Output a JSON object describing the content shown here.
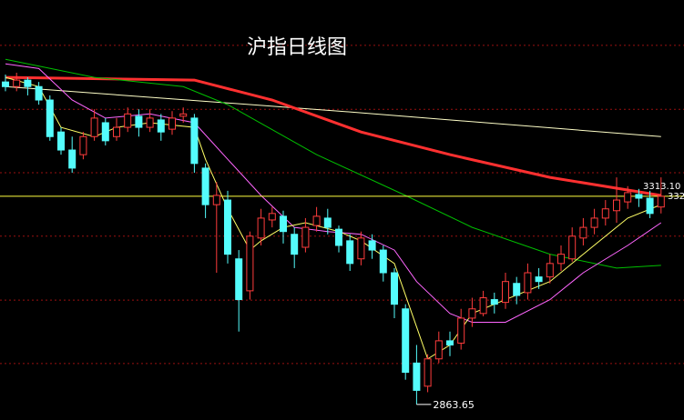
{
  "chart_data": {
    "type": "candlestick",
    "title": "沪指日线图",
    "ylim": [
      2830,
      3737
    ],
    "grid_levels": [
      3639,
      3501,
      3364,
      3227,
      3089,
      2952
    ],
    "up_color": "#ff3c3c",
    "down_color": "#54fcfc",
    "grid_color": "#9a1010",
    "candles": [
      [
        3560,
        3576,
        3540,
        3550
      ],
      [
        3550,
        3580,
        3540,
        3564
      ],
      [
        3564,
        3570,
        3531,
        3550
      ],
      [
        3550,
        3560,
        3511,
        3521
      ],
      [
        3521,
        3531,
        3433,
        3442
      ],
      [
        3452,
        3462,
        3403,
        3413
      ],
      [
        3413,
        3442,
        3364,
        3374
      ],
      [
        3403,
        3452,
        3393,
        3442
      ],
      [
        3442,
        3501,
        3433,
        3482
      ],
      [
        3472,
        3482,
        3423,
        3433
      ],
      [
        3442,
        3482,
        3433,
        3462
      ],
      [
        3462,
        3505,
        3452,
        3491
      ],
      [
        3486,
        3501,
        3442,
        3462
      ],
      [
        3462,
        3501,
        3452,
        3482
      ],
      [
        3478,
        3491,
        3433,
        3452
      ],
      [
        3458,
        3497,
        3446,
        3482
      ],
      [
        3486,
        3505,
        3472,
        3491
      ],
      [
        3482,
        3491,
        3364,
        3384
      ],
      [
        3374,
        3384,
        3266,
        3295
      ],
      [
        3295,
        3344,
        3148,
        3315
      ],
      [
        3305,
        3325,
        3168,
        3188
      ],
      [
        3178,
        3197,
        3021,
        3090
      ],
      [
        3109,
        3237,
        3090,
        3227
      ],
      [
        3223,
        3286,
        3207,
        3266
      ],
      [
        3262,
        3290,
        3246,
        3276
      ],
      [
        3270,
        3282,
        3211,
        3237
      ],
      [
        3231,
        3246,
        3158,
        3188
      ],
      [
        3203,
        3266,
        3192,
        3246
      ],
      [
        3250,
        3290,
        3237,
        3270
      ],
      [
        3266,
        3286,
        3231,
        3246
      ],
      [
        3242,
        3250,
        3192,
        3207
      ],
      [
        3217,
        3231,
        3152,
        3168
      ],
      [
        3178,
        3237,
        3164,
        3223
      ],
      [
        3217,
        3231,
        3178,
        3197
      ],
      [
        3197,
        3207,
        3129,
        3148
      ],
      [
        3148,
        3158,
        3050,
        3080
      ],
      [
        3070,
        3080,
        2917,
        2933
      ],
      [
        2953,
        2992,
        2863.65,
        2894
      ],
      [
        2903,
        2972,
        2890,
        2962
      ],
      [
        2962,
        3021,
        2953,
        3001
      ],
      [
        3001,
        3021,
        2968,
        2992
      ],
      [
        2996,
        3070,
        2982,
        3050
      ],
      [
        3050,
        3094,
        3031,
        3070
      ],
      [
        3060,
        3109,
        3054,
        3094
      ],
      [
        3090,
        3105,
        3060,
        3080
      ],
      [
        3084,
        3148,
        3070,
        3129
      ],
      [
        3125,
        3139,
        3080,
        3099
      ],
      [
        3105,
        3168,
        3090,
        3148
      ],
      [
        3139,
        3158,
        3113,
        3129
      ],
      [
        3139,
        3188,
        3125,
        3168
      ],
      [
        3168,
        3207,
        3152,
        3188
      ],
      [
        3178,
        3246,
        3172,
        3227
      ],
      [
        3223,
        3266,
        3207,
        3246
      ],
      [
        3246,
        3286,
        3231,
        3266
      ],
      [
        3266,
        3305,
        3250,
        3286
      ],
      [
        3282,
        3354,
        3256,
        3305
      ],
      [
        3301,
        3335,
        3286,
        3321
      ],
      [
        3317,
        3329,
        3290,
        3309
      ],
      [
        3309,
        3325,
        3266,
        3276
      ],
      [
        3290,
        3354,
        3276,
        3313.1
      ]
    ],
    "lines": [
      {
        "color": "#ffffc8",
        "width": 1,
        "x": [
          0,
          30,
          59
        ],
        "values": [
          3550,
          3497,
          3442
        ]
      },
      {
        "color": "#ff3030",
        "width": 3,
        "x": [
          0,
          17,
          24,
          32,
          40,
          49,
          59
        ],
        "values": [
          3570,
          3564,
          3521,
          3452,
          3403,
          3354,
          3315
        ]
      },
      {
        "color": "#00c000",
        "width": 1,
        "x": [
          0,
          8,
          16,
          20,
          28,
          36,
          42,
          49,
          55,
          59
        ],
        "values": [
          3609,
          3570,
          3550,
          3511,
          3403,
          3315,
          3246,
          3188,
          3158,
          3164
        ]
      },
      {
        "color": "#ff66ff",
        "width": 1,
        "x": [
          0,
          3,
          6,
          9,
          13,
          17,
          20,
          23,
          26,
          29,
          32,
          35,
          37,
          40,
          42,
          45,
          49,
          52,
          56,
          59
        ],
        "values": [
          3599,
          3589,
          3521,
          3482,
          3491,
          3472,
          3393,
          3315,
          3246,
          3237,
          3231,
          3197,
          3129,
          3060,
          3041,
          3041,
          3090,
          3148,
          3207,
          3256
        ]
      },
      {
        "color": "#ffff66",
        "width": 1,
        "x": [
          0,
          3,
          5,
          8,
          10,
          13,
          17,
          18,
          20,
          22,
          23,
          25,
          27,
          30,
          32,
          35,
          37,
          38,
          40,
          42,
          45,
          49,
          52,
          56,
          59
        ],
        "values": [
          3570,
          3550,
          3462,
          3442,
          3462,
          3472,
          3462,
          3393,
          3286,
          3197,
          3217,
          3246,
          3256,
          3237,
          3217,
          3168,
          3031,
          2962,
          2992,
          3060,
          3090,
          3129,
          3188,
          3266,
          3295
        ]
      }
    ],
    "last_close_line_color": "#ffff40",
    "annotations": {
      "low": "2863.65",
      "last": "3313.10",
      "edge": "332"
    }
  }
}
